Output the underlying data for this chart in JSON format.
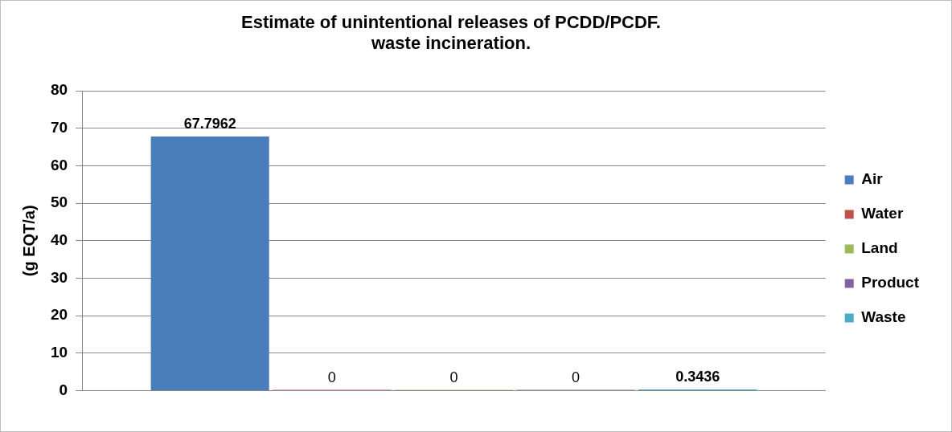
{
  "chart_data": {
    "type": "bar",
    "title": "Estimate of unintentional releases of PCDD/PCDF. waste incineration.",
    "ylabel": "(g EQT/a)",
    "categories": [
      null
    ],
    "series": [
      {
        "name": "Air",
        "color": "#4a7ebb",
        "values": [
          67.7962
        ]
      },
      {
        "name": "Water",
        "color": "#c0504d",
        "values": [
          0
        ]
      },
      {
        "name": "Land",
        "color": "#9bbb59",
        "values": [
          0
        ]
      },
      {
        "name": "Product",
        "color": "#8064a2",
        "values": [
          0
        ]
      },
      {
        "name": "Waste",
        "color": "#4bacc6",
        "values": [
          0.3436
        ]
      }
    ],
    "ylim": [
      0,
      80
    ],
    "yticks": [
      0,
      10,
      20,
      30,
      40,
      50,
      60,
      70,
      80
    ],
    "grid": "y",
    "legend": "right",
    "data_labels": true
  }
}
